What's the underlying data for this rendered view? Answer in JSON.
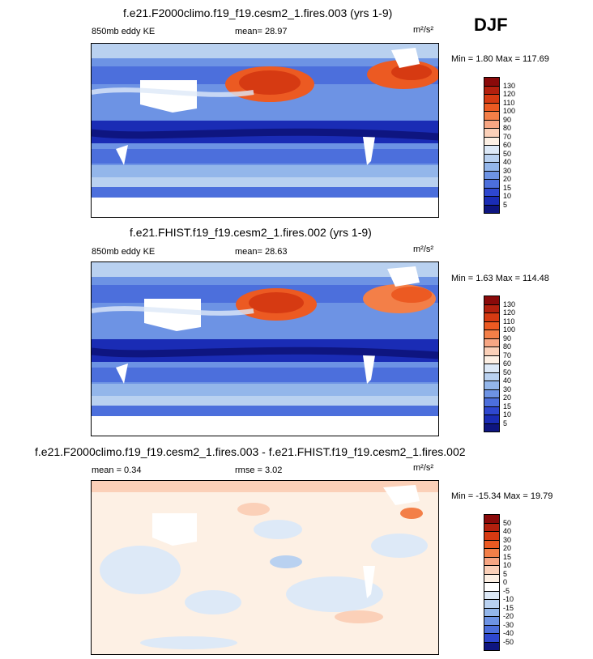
{
  "season": "DJF",
  "panels": [
    {
      "title": "f.e21.F2000climo.f19_f19.cesm2_1.fires.003 (yrs 1-9)",
      "left_label": "850mb eddy KE",
      "center_label": "mean=  28.97",
      "units": "m²/s²",
      "minmax": "Min =   1.80 Max = 117.69"
    },
    {
      "title": "f.e21.FHIST.f19_f19.cesm2_1.fires.002 (yrs 1-9)",
      "left_label": "850mb eddy KE",
      "center_label": "mean=  28.63",
      "units": "m²/s²",
      "minmax": "Min =   1.63 Max = 114.48"
    },
    {
      "title": "f.e21.F2000climo.f19_f19.cesm2_1.fires.003 - f.e21.FHIST.f19_f19.cesm2_1.fires.002",
      "left_label": "mean =   0.34",
      "center_label": "rmse =   3.02",
      "units": "m²/s²",
      "minmax": "Min = -15.34 Max =  19.79"
    }
  ],
  "legend_abs": {
    "levels": [
      "130",
      "120",
      "110",
      "100",
      "90",
      "80",
      "70",
      "60",
      "50",
      "40",
      "30",
      "20",
      "15",
      "10",
      "5"
    ],
    "colors": [
      "#8a0a0a",
      "#b3200e",
      "#d63a12",
      "#ec5a22",
      "#f37f48",
      "#f7a683",
      "#fbd0b8",
      "#fdf0e4",
      "#dde9f7",
      "#b9d1f0",
      "#93b6ea",
      "#6d93e4",
      "#4c6fdc",
      "#2e47cf",
      "#1a2cb5",
      "#0e1580"
    ]
  },
  "legend_diff": {
    "levels": [
      "50",
      "40",
      "30",
      "20",
      "15",
      "10",
      "5",
      "0",
      "-5",
      "-10",
      "-15",
      "-20",
      "-30",
      "-40",
      "-50"
    ],
    "colors": [
      "#8a0a0a",
      "#b3200e",
      "#d63a12",
      "#ec5a22",
      "#f37f48",
      "#f7a683",
      "#fbd0b8",
      "#fdf0e4",
      "#ffffff",
      "#dde9f7",
      "#b9d1f0",
      "#93b6ea",
      "#6d93e4",
      "#4c6fdc",
      "#2e47cf",
      "#0e1580"
    ]
  }
}
